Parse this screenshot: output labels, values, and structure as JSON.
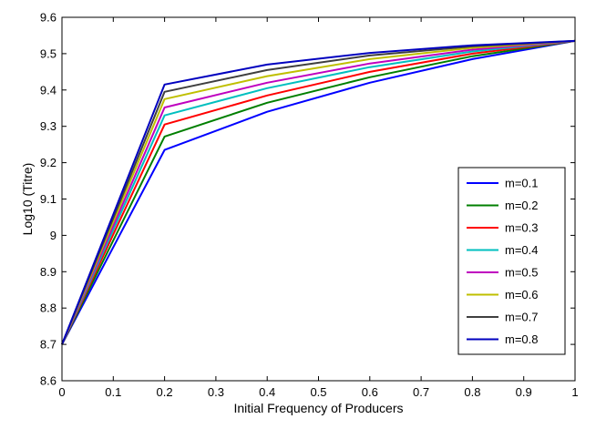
{
  "chart_data": {
    "type": "line",
    "xlabel": "Initial Frequency of Producers",
    "ylabel": "Log10 (Titre)",
    "xlim": [
      0,
      1
    ],
    "ylim": [
      8.6,
      9.6
    ],
    "xticks": [
      "0",
      "0.1",
      "0.2",
      "0.3",
      "0.4",
      "0.5",
      "0.6",
      "0.7",
      "0.8",
      "0.9",
      "1"
    ],
    "yticks": [
      "8.6",
      "8.7",
      "8.8",
      "8.9",
      "9",
      "9.1",
      "9.2",
      "9.3",
      "9.4",
      "9.5",
      "9.6"
    ],
    "grid": false,
    "legend_position": "lower-right",
    "x": [
      0,
      0.2,
      0.4,
      0.6,
      0.8,
      1.0
    ],
    "series": [
      {
        "name": "m=0.1",
        "color": "#0000ff",
        "values": [
          8.7,
          9.235,
          9.34,
          9.42,
          9.485,
          9.535
        ]
      },
      {
        "name": "m=0.2",
        "color": "#007f00",
        "values": [
          8.7,
          9.272,
          9.365,
          9.435,
          9.493,
          9.535
        ]
      },
      {
        "name": "m=0.3",
        "color": "#ff0000",
        "values": [
          8.7,
          9.305,
          9.385,
          9.45,
          9.5,
          9.535
        ]
      },
      {
        "name": "m=0.4",
        "color": "#00bfbf",
        "values": [
          8.7,
          9.33,
          9.405,
          9.463,
          9.506,
          9.535
        ]
      },
      {
        "name": "m=0.5",
        "color": "#bf00bf",
        "values": [
          8.7,
          9.352,
          9.42,
          9.473,
          9.511,
          9.535
        ]
      },
      {
        "name": "m=0.6",
        "color": "#bfbf00",
        "values": [
          8.7,
          9.375,
          9.438,
          9.485,
          9.516,
          9.535
        ]
      },
      {
        "name": "m=0.7",
        "color": "#3f3f3f",
        "values": [
          8.7,
          9.395,
          9.455,
          9.495,
          9.52,
          9.535
        ]
      },
      {
        "name": "m=0.8",
        "color": "#0000bf",
        "values": [
          8.7,
          9.415,
          9.47,
          9.502,
          9.523,
          9.535
        ]
      }
    ]
  }
}
